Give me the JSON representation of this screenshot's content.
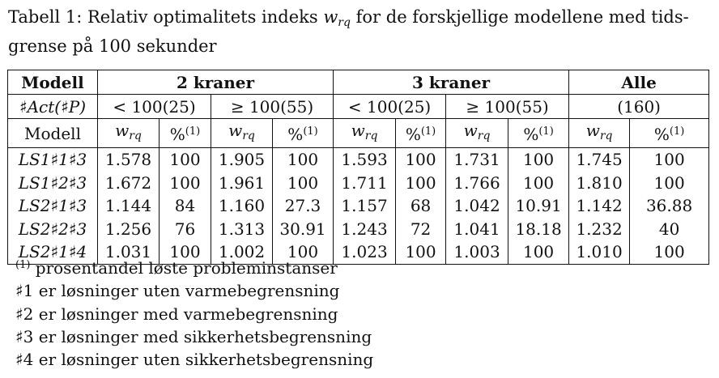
{
  "caption": {
    "prefix": "Tabell 1: Relativ optimalitets indeks ",
    "symbol_base": "w",
    "symbol_sub": "rq",
    "line1_rest": " for de forskjellige modellene med tids-",
    "line2": "grense på 100 sekunder"
  },
  "table": {
    "header": {
      "col0": "Modell",
      "group1": "2 kraner",
      "group2": "3 kraner",
      "group3": "Alle"
    },
    "subheader": {
      "col0": "♯Act(♯P)",
      "g1_lt": "< 100(25)",
      "g1_ge": "≥ 100(55)",
      "g2_lt": "< 100(25)",
      "g2_ge": "≥ 100(55)",
      "g3": "(160)"
    },
    "colhead": {
      "col0": "Modell",
      "w_base": "w",
      "w_sub": "rq",
      "pct": "%",
      "pct_sup": "(1)"
    },
    "rows": [
      {
        "model": "LS1♯1♯3",
        "v": [
          "1.578",
          "100",
          "1.905",
          "100",
          "1.593",
          "100",
          "1.731",
          "100",
          "1.745",
          "100"
        ]
      },
      {
        "model": "LS1♯2♯3",
        "v": [
          "1.672",
          "100",
          "1.961",
          "100",
          "1.711",
          "100",
          "1.766",
          "100",
          "1.810",
          "100"
        ]
      },
      {
        "model": "LS2♯1♯3",
        "v": [
          "1.144",
          "84",
          "1.160",
          "27.3",
          "1.157",
          "68",
          "1.042",
          "10.91",
          "1.142",
          "36.88"
        ]
      },
      {
        "model": "LS2♯2♯3",
        "v": [
          "1.256",
          "76",
          "1.313",
          "30.91",
          "1.243",
          "72",
          "1.041",
          "18.18",
          "1.232",
          "40"
        ]
      },
      {
        "model": "LS2♯1♯4",
        "v": [
          "1.031",
          "100",
          "1.002",
          "100",
          "1.023",
          "100",
          "1.003",
          "100",
          "1.010",
          "100"
        ]
      }
    ]
  },
  "notes": {
    "n0_sup": "(1)",
    "n0": " prosentandel løste probleminstanser",
    "n1": "♯1 er løsninger uten varmebegrensning",
    "n2": "♯2 er løsninger med varmebegrensning",
    "n3": "♯3 er løsninger med sikkerhetsbegrensning",
    "n4": "♯4 er løsninger uten sikkerhetsbegrensning"
  }
}
